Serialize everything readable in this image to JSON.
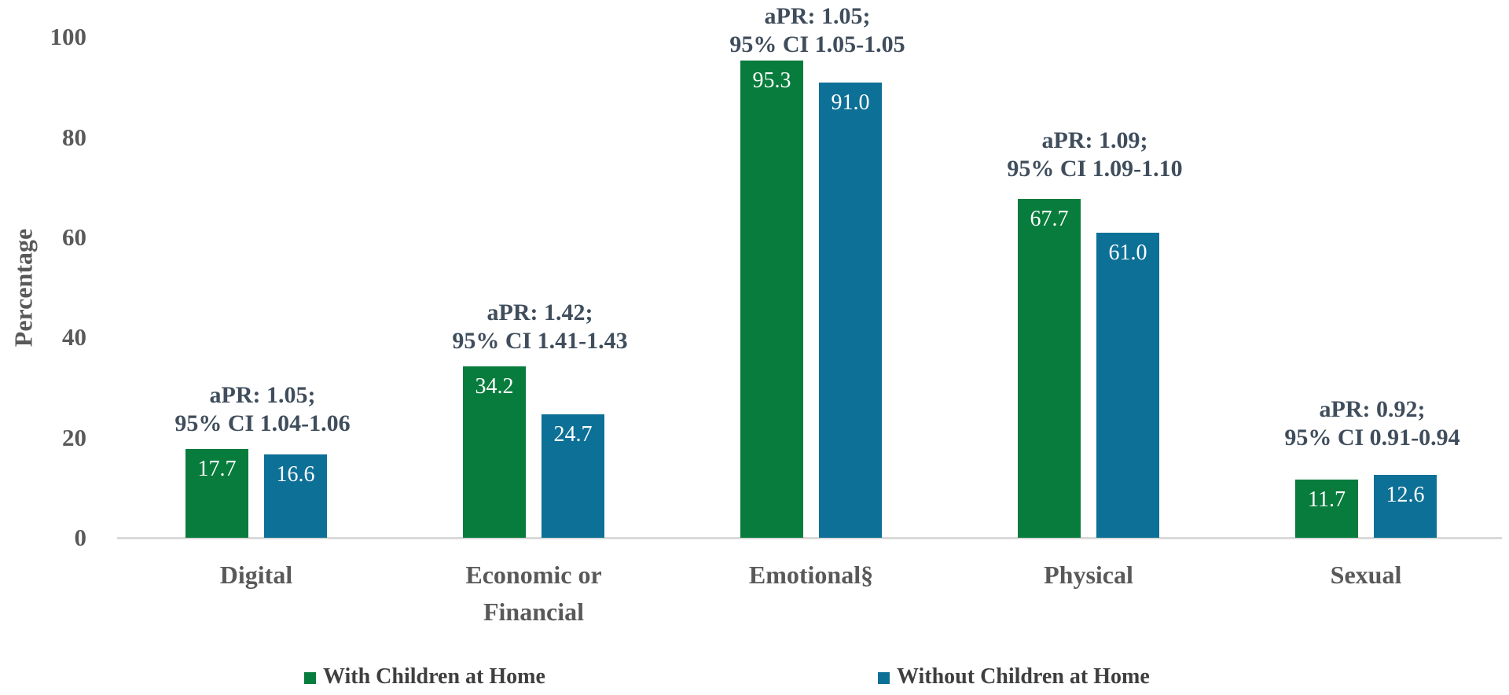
{
  "chart_data": {
    "type": "bar",
    "title": "",
    "xlabel": "",
    "ylabel": "Percentage",
    "ylim": [
      0,
      100
    ],
    "yticks": [
      0,
      20,
      40,
      60,
      80,
      100
    ],
    "grid": false,
    "legend_position": "bottom",
    "categories": [
      "Digital",
      "Economic or Financial",
      "Emotional§",
      "Physical",
      "Sexual"
    ],
    "series": [
      {
        "name": "With Children at Home",
        "color": "#087C3C",
        "values": [
          17.7,
          34.2,
          95.3,
          67.7,
          11.7
        ]
      },
      {
        "name": "Without Children at Home",
        "color": "#0D7096",
        "values": [
          16.6,
          24.7,
          91.0,
          61.0,
          12.6
        ]
      }
    ],
    "annotations": [
      {
        "line1": "aPR: 1.05;",
        "line2": "95% CI 1.04-1.06"
      },
      {
        "line1": "aPR: 1.42;",
        "line2": "95% CI 1.41-1.43"
      },
      {
        "line1": "aPR: 1.05;",
        "line2": "95% CI 1.05-1.05"
      },
      {
        "line1": "aPR: 1.09;",
        "line2": "95% CI 1.09-1.10"
      },
      {
        "line1": "aPR: 0.92;",
        "line2": "95% CI 0.91-0.94"
      }
    ]
  },
  "colors": {
    "annotation_text": "#3F4D5C",
    "axis_text": "#595959",
    "legend_text": "#3F3F3F",
    "baseline": "#D9D9D9",
    "value_label_text": "#FFFFFF"
  }
}
